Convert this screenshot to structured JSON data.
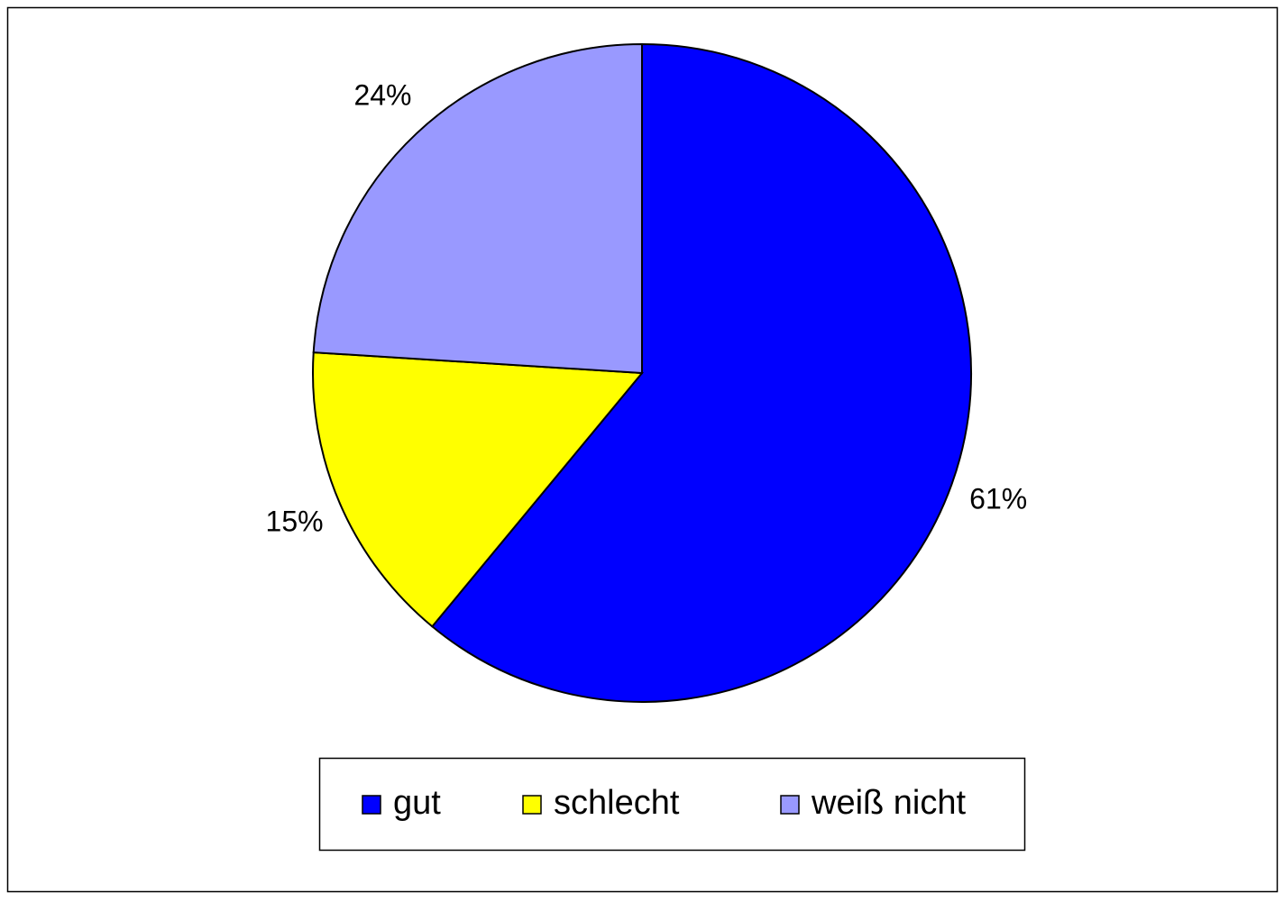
{
  "chart_data": {
    "type": "pie",
    "categories": [
      "gut",
      "schlecht",
      "weiß nicht"
    ],
    "values": [
      61,
      15,
      24
    ],
    "value_labels": [
      "61%",
      "15%",
      "24%"
    ],
    "colors": [
      "#0000ff",
      "#ffff00",
      "#9999ff"
    ],
    "legend": "bottom"
  }
}
